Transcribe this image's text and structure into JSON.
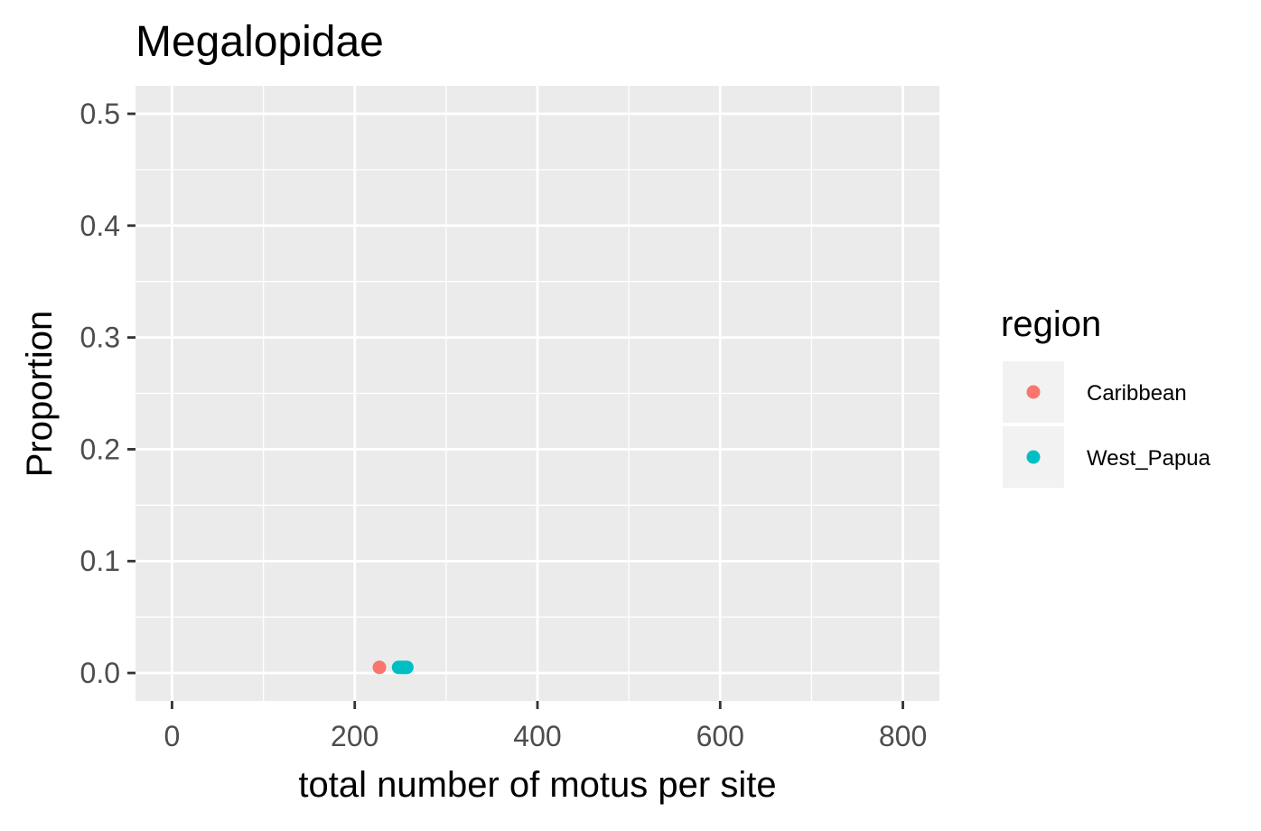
{
  "chart_data": {
    "type": "scatter",
    "title": "Megalopidae",
    "xlabel": "total number of motus per site",
    "ylabel": "Proportion",
    "xlim": [
      -40,
      840
    ],
    "ylim": [
      -0.025,
      0.525
    ],
    "x_ticks": [
      0,
      200,
      400,
      600,
      800
    ],
    "x_tick_labels": [
      "0",
      "200",
      "400",
      "600",
      "800"
    ],
    "y_ticks": [
      0.0,
      0.1,
      0.2,
      0.3,
      0.4,
      0.5
    ],
    "y_tick_labels": [
      "0.0",
      "0.1",
      "0.2",
      "0.3",
      "0.4",
      "0.5"
    ],
    "grid": true,
    "legend": {
      "title": "region",
      "position": "right"
    },
    "series": [
      {
        "name": "Caribbean",
        "color": "#F8766D",
        "points": [
          {
            "x": 227,
            "y": 0.005
          }
        ]
      },
      {
        "name": "West_Papua",
        "color": "#00BFC4",
        "points": [
          {
            "x": 248,
            "y": 0.005
          },
          {
            "x": 251,
            "y": 0.005
          },
          {
            "x": 253,
            "y": 0.005
          },
          {
            "x": 255,
            "y": 0.005
          },
          {
            "x": 257,
            "y": 0.005
          }
        ]
      }
    ]
  }
}
